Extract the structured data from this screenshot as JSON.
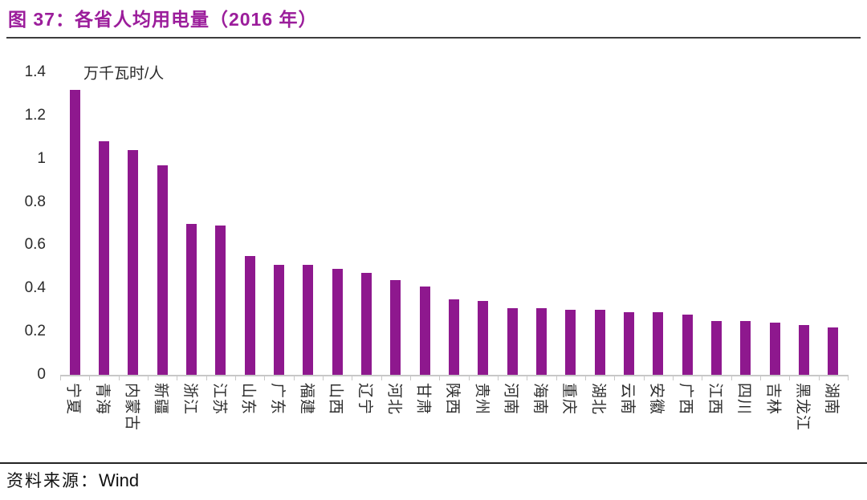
{
  "header": {
    "title": "图 37：各省人均用电量（2016 年）"
  },
  "footer": {
    "source_prefix": "资料来源：",
    "source_name": "Wind"
  },
  "colors": {
    "title": "#9b1d9b",
    "bar": "#8e188e",
    "axis": "#c7c7c7",
    "tick_text": "#2a2a2a"
  },
  "chart_data": {
    "type": "bar",
    "title": "各省人均用电量（2016 年）",
    "unit_label": "万千瓦时/人",
    "xlabel": "",
    "ylabel": "万千瓦时/人",
    "ylim": [
      0,
      1.4
    ],
    "ytick_labels": [
      "1.4",
      "1.2",
      "1",
      "0.8",
      "0.6",
      "0.4",
      "0.2",
      "0"
    ],
    "grid": false,
    "legend_position": "none",
    "bar_color": "#8e188e",
    "categories": [
      "宁夏",
      "青海",
      "内蒙古",
      "新疆",
      "浙江",
      "江苏",
      "山东",
      "广东",
      "福建",
      "山西",
      "辽宁",
      "河北",
      "甘肃",
      "陕西",
      "贵州",
      "河南",
      "海南",
      "重庆",
      "湖北",
      "云南",
      "安徽",
      "广西",
      "江西",
      "四川",
      "吉林",
      "黑龙江",
      "湖南"
    ],
    "values": [
      1.32,
      1.08,
      1.04,
      0.97,
      0.7,
      0.69,
      0.55,
      0.51,
      0.51,
      0.49,
      0.47,
      0.44,
      0.41,
      0.35,
      0.34,
      0.31,
      0.31,
      0.3,
      0.3,
      0.29,
      0.29,
      0.28,
      0.25,
      0.25,
      0.24,
      0.23,
      0.22
    ]
  }
}
